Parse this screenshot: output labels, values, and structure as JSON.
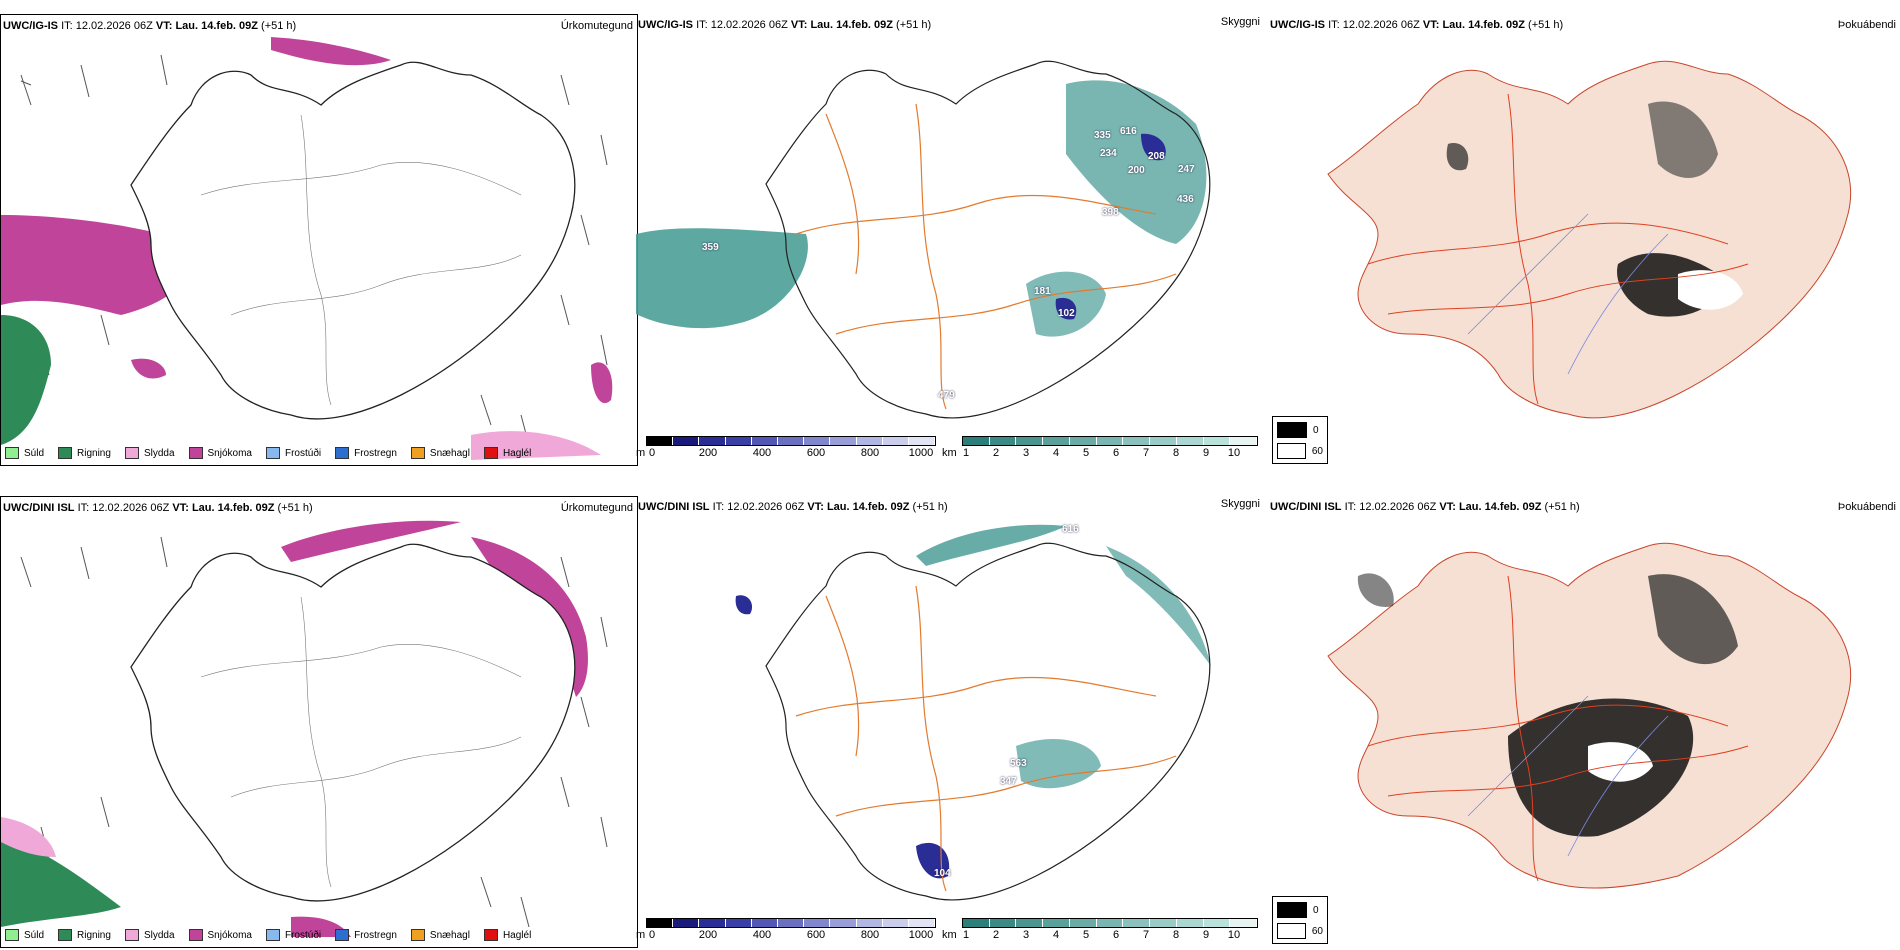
{
  "colors": {
    "snow": "#c0459a",
    "rain": "#2e8b57",
    "sleet": "#f0a8d8",
    "ceiling": "#4c9e98",
    "visibility_low": "#2a2d96",
    "land_fill": "#f5e0d3",
    "roads": "#e37a2e",
    "outline": "#222222"
  },
  "rows": [
    {
      "id": "igis",
      "precip": {
        "model": "UWC/IG-IS",
        "it_label": "IT:",
        "it_value": "12.02.2026 06Z",
        "vt_label": "VT:",
        "vt_value": "Lau. 14.feb. 09Z",
        "lead": "(+51 h)",
        "field": "Úrkomutegund"
      },
      "cloud": {
        "model": "UWC/IG-IS",
        "it_label": "IT:",
        "it_value": "12.02.2026 06Z",
        "vt_label": "VT:",
        "vt_value": "Lau. 14.feb. 09Z",
        "lead": "(+51 h)",
        "field": "Skyggni",
        "spot_labels": [
          "359",
          "335",
          "616",
          "234",
          "208",
          "200",
          "247",
          "436",
          "398",
          "181",
          "102",
          "479"
        ]
      },
      "fog": {
        "model": "UWC/IG-IS",
        "it_label": "IT:",
        "it_value": "12.02.2026 06Z",
        "vt_label": "VT:",
        "vt_value": "Lau. 14.feb. 09Z",
        "lead": "(+51 h)",
        "field": "Þokuábendi"
      }
    },
    {
      "id": "dini",
      "precip": {
        "model": "UWC/DINI ISL",
        "it_label": "IT:",
        "it_value": "12.02.2026 06Z",
        "vt_label": "VT:",
        "vt_value": "Lau. 14.feb. 09Z",
        "lead": "(+51 h)",
        "field": "Úrkomutegund"
      },
      "cloud": {
        "model": "UWC/DINI ISL",
        "it_label": "IT:",
        "it_value": "12.02.2026 06Z",
        "vt_label": "VT:",
        "vt_value": "Lau. 14.feb. 09Z",
        "lead": "(+51 h)",
        "field": "Skyggni",
        "spot_labels": [
          "616",
          "563",
          "347",
          "104"
        ]
      },
      "fog": {
        "model": "UWC/DINI ISL",
        "it_label": "IT:",
        "it_value": "12.02.2026 06Z",
        "vt_label": "VT:",
        "vt_value": "Lau. 14.feb. 09Z",
        "lead": "(+51 h)",
        "field": "Þokuábendi"
      }
    }
  ],
  "precip_legend": [
    {
      "label": "Súld",
      "color": "#90ee90"
    },
    {
      "label": "Rigning",
      "color": "#2e8b57"
    },
    {
      "label": "Slydda",
      "color": "#f0a8d8"
    },
    {
      "label": "Snjókoma",
      "color": "#c0459a"
    },
    {
      "label": "Frostúði",
      "color": "#87b8ee"
    },
    {
      "label": "Frostregn",
      "color": "#2c6fd0"
    },
    {
      "label": "Snæhagl",
      "color": "#f0a020"
    },
    {
      "label": "Haglél",
      "color": "#e01010"
    }
  ],
  "ceiling_bar": {
    "unit": "m",
    "ticks": [
      "0",
      "200",
      "400",
      "600",
      "800",
      "1000"
    ],
    "colors": [
      "#000000",
      "#1a1a7a",
      "#2a2d96",
      "#3a3fa8",
      "#5256b4",
      "#6a6fc0",
      "#8286cc",
      "#9a9ed8",
      "#b2b6e2",
      "#cacdec",
      "#e2e4f6"
    ]
  },
  "visibility_bar": {
    "unit": "km",
    "ticks": [
      "1",
      "2",
      "3",
      "4",
      "5",
      "6",
      "7",
      "8",
      "9",
      "10"
    ],
    "colors": [
      "#2a7f7a",
      "#3a8a85",
      "#4a9590",
      "#5aa09b",
      "#6aaba6",
      "#7ab6b1",
      "#8ac1bc",
      "#9accc7",
      "#aad7d2",
      "#bae2dd",
      "#e8f4f2"
    ]
  },
  "fog_key": [
    "0",
    "60"
  ]
}
